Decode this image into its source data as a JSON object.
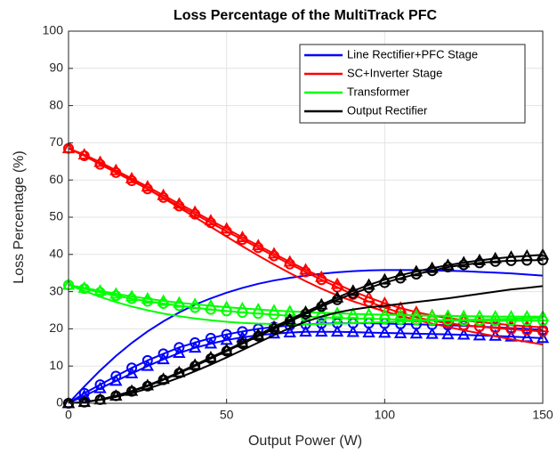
{
  "chart_data": {
    "type": "line",
    "title": "Loss Percentage of the MultiTrack PFC",
    "xlabel": "Output Power (W)",
    "ylabel": "Loss Percentage (%)",
    "x": [
      0,
      5,
      10,
      15,
      20,
      25,
      30,
      35,
      40,
      45,
      50,
      55,
      60,
      65,
      70,
      75,
      80,
      85,
      90,
      95,
      100,
      105,
      110,
      115,
      120,
      125,
      130,
      135,
      140,
      145,
      150
    ],
    "xlim": [
      0,
      150
    ],
    "xticks": [
      0,
      50,
      100,
      150
    ],
    "ylim": [
      0,
      100
    ],
    "yticks": [
      0,
      10,
      20,
      30,
      40,
      50,
      60,
      70,
      80,
      90,
      100
    ],
    "grid": true,
    "legend": "top-right",
    "series": [
      {
        "name": "Line Rectifier+PFC Stage",
        "color": "#0000ff",
        "marker": "none",
        "values": [
          0,
          4.5,
          8.8,
          12.7,
          16.2,
          19.3,
          22,
          24.4,
          26.5,
          28.2,
          29.7,
          31,
          32.1,
          33,
          33.7,
          34.3,
          34.8,
          35.2,
          35.5,
          35.7,
          35.8,
          35.8,
          35.8,
          35.7,
          35.6,
          35.5,
          35.3,
          35.1,
          34.9,
          34.6,
          34.3
        ]
      },
      {
        "color": "#0000ff",
        "marker": "o",
        "values": [
          0,
          2.7,
          5,
          7.3,
          9.5,
          11.5,
          13.3,
          15,
          16.3,
          17.5,
          18.5,
          19.3,
          20,
          20.5,
          20.9,
          21.2,
          21.4,
          21.5,
          21.5,
          21.5,
          21.4,
          21.3,
          21.2,
          21.1,
          21,
          20.8,
          20.6,
          20.4,
          20.2,
          20,
          19.7
        ]
      },
      {
        "color": "#0000ff",
        "marker": "^",
        "values": [
          0,
          2,
          4,
          6,
          8,
          10,
          11.8,
          13.5,
          14.9,
          16,
          17,
          17.7,
          18.3,
          18.7,
          19,
          19.2,
          19.2,
          19.2,
          19.1,
          19,
          18.9,
          18.8,
          18.7,
          18.6,
          18.5,
          18.4,
          18.2,
          18.1,
          17.9,
          17.7,
          17.5
        ]
      },
      {
        "name": "SC+Inverter Stage",
        "color": "#ff0000",
        "marker": "none",
        "values": [
          68.5,
          66.5,
          64.5,
          62.3,
          60,
          57.6,
          55.1,
          52.6,
          50,
          47.4,
          44.8,
          42.2,
          39.7,
          37.3,
          35,
          32.8,
          30.8,
          29,
          27.4,
          26,
          24.7,
          23.5,
          22.4,
          21.4,
          20.5,
          19.6,
          18.8,
          18,
          17.2,
          16.5,
          15.8
        ]
      },
      {
        "color": "#ff0000",
        "marker": "o",
        "values": [
          68.5,
          66.5,
          64.2,
          62,
          59.8,
          57.6,
          55.3,
          53,
          50.8,
          48.5,
          46.2,
          44,
          41.8,
          39.6,
          37.4,
          35.3,
          33.2,
          31.2,
          29.2,
          27.3,
          25.7,
          24.3,
          23.1,
          22.2,
          21.5,
          21,
          20.6,
          20.2,
          19.9,
          19.6,
          19.3
        ]
      },
      {
        "color": "#ff0000",
        "marker": "^",
        "values": [
          68.5,
          66.8,
          64.8,
          62.6,
          60.4,
          58.2,
          55.9,
          53.6,
          51.4,
          49.1,
          46.9,
          44.6,
          42.4,
          40.2,
          38,
          35.9,
          33.9,
          32,
          30.1,
          28.4,
          26.9,
          25.6,
          24.5,
          23.6,
          22.9,
          22.3,
          21.8,
          21.4,
          21,
          20.7,
          20.4
        ]
      },
      {
        "name": "Transformer",
        "color": "#00ff00",
        "marker": "none",
        "values": [
          31.8,
          30.2,
          28.6,
          27.2,
          26,
          25,
          24.1,
          23.4,
          22.8,
          22.3,
          21.9,
          21.6,
          21.4,
          21.3,
          21.2,
          21.2,
          21.3,
          21.4,
          21.5,
          21.7,
          21.8,
          22,
          22.1,
          22.2,
          22.3,
          22.4,
          22.5,
          22.6,
          22.7,
          22.8,
          22.9
        ]
      },
      {
        "color": "#00ff00",
        "marker": "o",
        "values": [
          31.8,
          30.8,
          29.8,
          28.9,
          28.1,
          27.4,
          26.8,
          26.2,
          25.7,
          25.2,
          24.8,
          24.4,
          24.1,
          23.8,
          23.5,
          23.3,
          23.1,
          22.9,
          22.8,
          22.7,
          22.6,
          22.5,
          22.4,
          22.3,
          22.3,
          22.2,
          22.2,
          22.2,
          22.2,
          22.2,
          22.2
        ]
      },
      {
        "color": "#00ff00",
        "marker": "^",
        "values": [
          31.8,
          31,
          30.2,
          29.4,
          28.7,
          28.1,
          27.5,
          27,
          26.6,
          26.2,
          25.8,
          25.5,
          25.2,
          24.9,
          24.7,
          24.5,
          24.3,
          24.2,
          24,
          23.9,
          23.8,
          23.7,
          23.6,
          23.5,
          23.5,
          23.4,
          23.4,
          23.3,
          23.3,
          23.3,
          23.3
        ]
      },
      {
        "name": "Output Rectifier",
        "color": "#000000",
        "marker": "none",
        "values": [
          0,
          0.3,
          0.9,
          1.7,
          2.7,
          3.9,
          5.3,
          6.9,
          8.6,
          10.4,
          12.3,
          14.3,
          16.3,
          18.3,
          20.2,
          21.9,
          23.3,
          24.4,
          25.2,
          25.8,
          26.2,
          26.7,
          27.2,
          27.7,
          28.2,
          28.8,
          29.4,
          30,
          30.6,
          31,
          31.5
        ]
      },
      {
        "color": "#000000",
        "marker": "o",
        "values": [
          0,
          0.3,
          1,
          2,
          3.2,
          4.6,
          6.3,
          8.1,
          10,
          12,
          14,
          16,
          18,
          20,
          22,
          24,
          26,
          27.8,
          29.5,
          31,
          32.4,
          33.6,
          34.7,
          35.6,
          36.6,
          37.2,
          37.7,
          38.1,
          38.3,
          38.4,
          38.5
        ]
      },
      {
        "color": "#000000",
        "marker": "^",
        "values": [
          0,
          0.3,
          1,
          2,
          3.3,
          4.8,
          6.5,
          8.3,
          10.3,
          12.3,
          14.3,
          16.3,
          18.4,
          20.5,
          22.5,
          24.5,
          26.5,
          28.4,
          30.2,
          31.8,
          33.2,
          34.4,
          35.4,
          36.3,
          37.1,
          37.8,
          38.4,
          38.9,
          39.3,
          39.6,
          39.9
        ]
      }
    ]
  }
}
